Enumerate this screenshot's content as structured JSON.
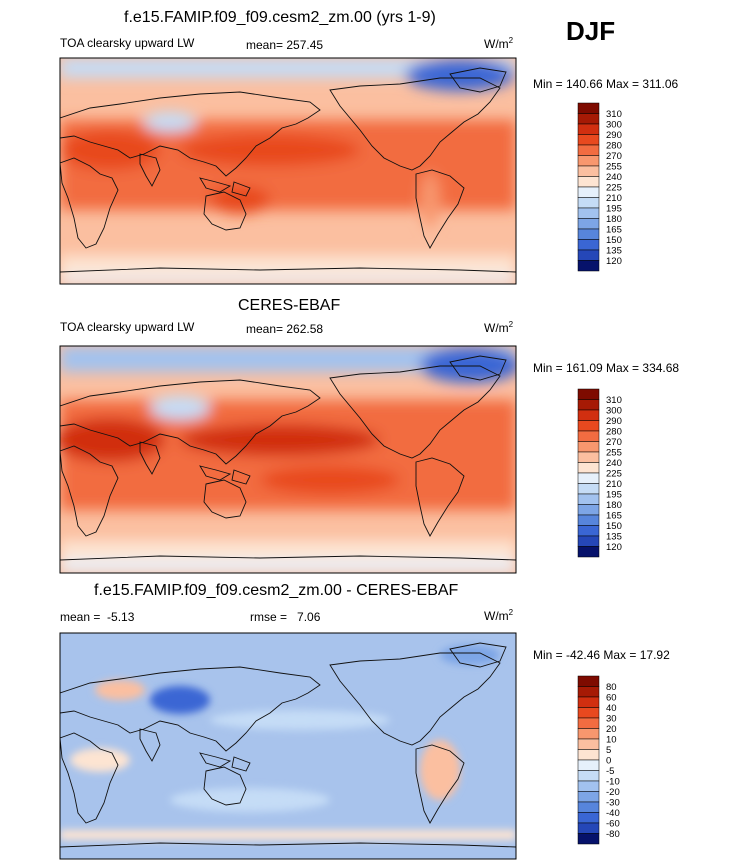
{
  "season": "DJF",
  "units": {
    "base": "W/m",
    "exp": "2"
  },
  "colors": {
    "warm": [
      "#fde4d2",
      "#fbbfa0",
      "#f8976e",
      "#f26c41",
      "#e8491f",
      "#d12f10",
      "#a61a05",
      "#7e0b00"
    ],
    "cool": [
      "#e6f0fb",
      "#c5dcf6",
      "#a2c2ef",
      "#7da5e6",
      "#5785dc",
      "#3a66d4",
      "#2547b8",
      "#112a98",
      "#06126b"
    ],
    "neutral": "#ffffff",
    "land": "#ef6a3d",
    "diffbase": "#a8c3ec"
  },
  "chart_data": [
    {
      "type": "heatmap",
      "title": "f.e15.FAMIP.f09_f09.cesm2_zm.00 (yrs 1-9)",
      "variable": "TOA clearsky upward LW",
      "mean_label": "mean=",
      "mean": "257.45",
      "minmax": "Min = 140.66 Max = 311.06",
      "legend_levels": [
        "310",
        "300",
        "290",
        "280",
        "270",
        "255",
        "240",
        "225",
        "210",
        "195",
        "180",
        "165",
        "150",
        "135",
        "120"
      ]
    },
    {
      "type": "heatmap",
      "title": "CERES-EBAF",
      "variable": "TOA clearsky upward LW",
      "mean_label": "mean=",
      "mean": "262.58",
      "minmax": "Min = 161.09 Max = 334.68",
      "legend_levels": [
        "310",
        "300",
        "290",
        "280",
        "270",
        "255",
        "240",
        "225",
        "210",
        "195",
        "180",
        "165",
        "150",
        "135",
        "120"
      ]
    },
    {
      "type": "heatmap",
      "title": "f.e15.FAMIP.f09_f09.cesm2_zm.00 - CERES-EBAF",
      "mean_label": "mean =",
      "mean": "-5.13",
      "rmse_label": "rmse =",
      "rmse": "7.06",
      "minmax": "Min = -42.46 Max =  17.92",
      "legend_levels": [
        "80",
        "60",
        "40",
        "30",
        "20",
        "10",
        "5",
        "0",
        "-5",
        "-10",
        "-20",
        "-30",
        "-40",
        "-60",
        "-80"
      ]
    }
  ]
}
